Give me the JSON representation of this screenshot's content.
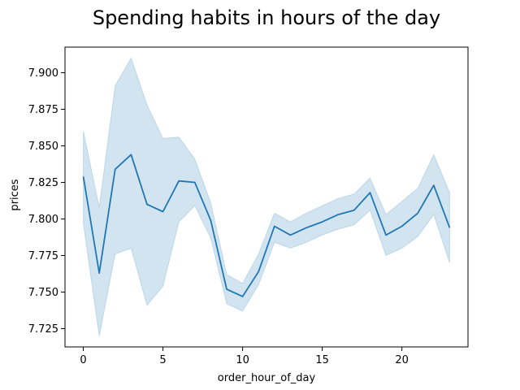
{
  "chart_data": {
    "type": "line",
    "title": "Spending habits in hours of the day",
    "xlabel": "order_hour_of_day",
    "ylabel": "prices",
    "xlim": [
      -1.15,
      24.15
    ],
    "ylim": [
      7.7125,
      7.9175
    ],
    "xticks": [
      0,
      5,
      10,
      15,
      20
    ],
    "xtick_labels": [
      "0",
      "5",
      "10",
      "15",
      "20"
    ],
    "yticks": [
      7.725,
      7.75,
      7.775,
      7.8,
      7.825,
      7.85,
      7.875,
      7.9
    ],
    "ytick_labels": [
      "7.725",
      "7.750",
      "7.775",
      "7.800",
      "7.825",
      "7.850",
      "7.875",
      "7.900"
    ],
    "grid": false,
    "colors": {
      "line": "#1f77b4",
      "band": "#1f77b4"
    },
    "series": [
      {
        "x": [
          0,
          1,
          2,
          3,
          4,
          5,
          6,
          7,
          8,
          9,
          10,
          11,
          12,
          13,
          14,
          15,
          16,
          17,
          18,
          19,
          20,
          21,
          22,
          23
        ],
        "values": [
          7.829,
          7.763,
          7.834,
          7.844,
          7.81,
          7.805,
          7.826,
          7.825,
          7.799,
          7.752,
          7.747,
          7.764,
          7.795,
          7.789,
          7.794,
          7.798,
          7.803,
          7.806,
          7.818,
          7.789,
          7.795,
          7.804,
          7.823,
          7.794
        ],
        "ci_lower": [
          7.797,
          7.72,
          7.776,
          7.78,
          7.741,
          7.754,
          7.798,
          7.809,
          7.787,
          7.742,
          7.737,
          7.755,
          7.784,
          7.78,
          7.784,
          7.789,
          7.793,
          7.796,
          7.806,
          7.775,
          7.78,
          7.788,
          7.803,
          7.77
        ],
        "ci_upper": [
          7.86,
          7.808,
          7.891,
          7.91,
          7.878,
          7.855,
          7.856,
          7.841,
          7.811,
          7.762,
          7.756,
          7.776,
          7.804,
          7.798,
          7.804,
          7.809,
          7.814,
          7.817,
          7.828,
          7.803,
          7.812,
          7.821,
          7.844,
          7.818
        ]
      }
    ]
  }
}
